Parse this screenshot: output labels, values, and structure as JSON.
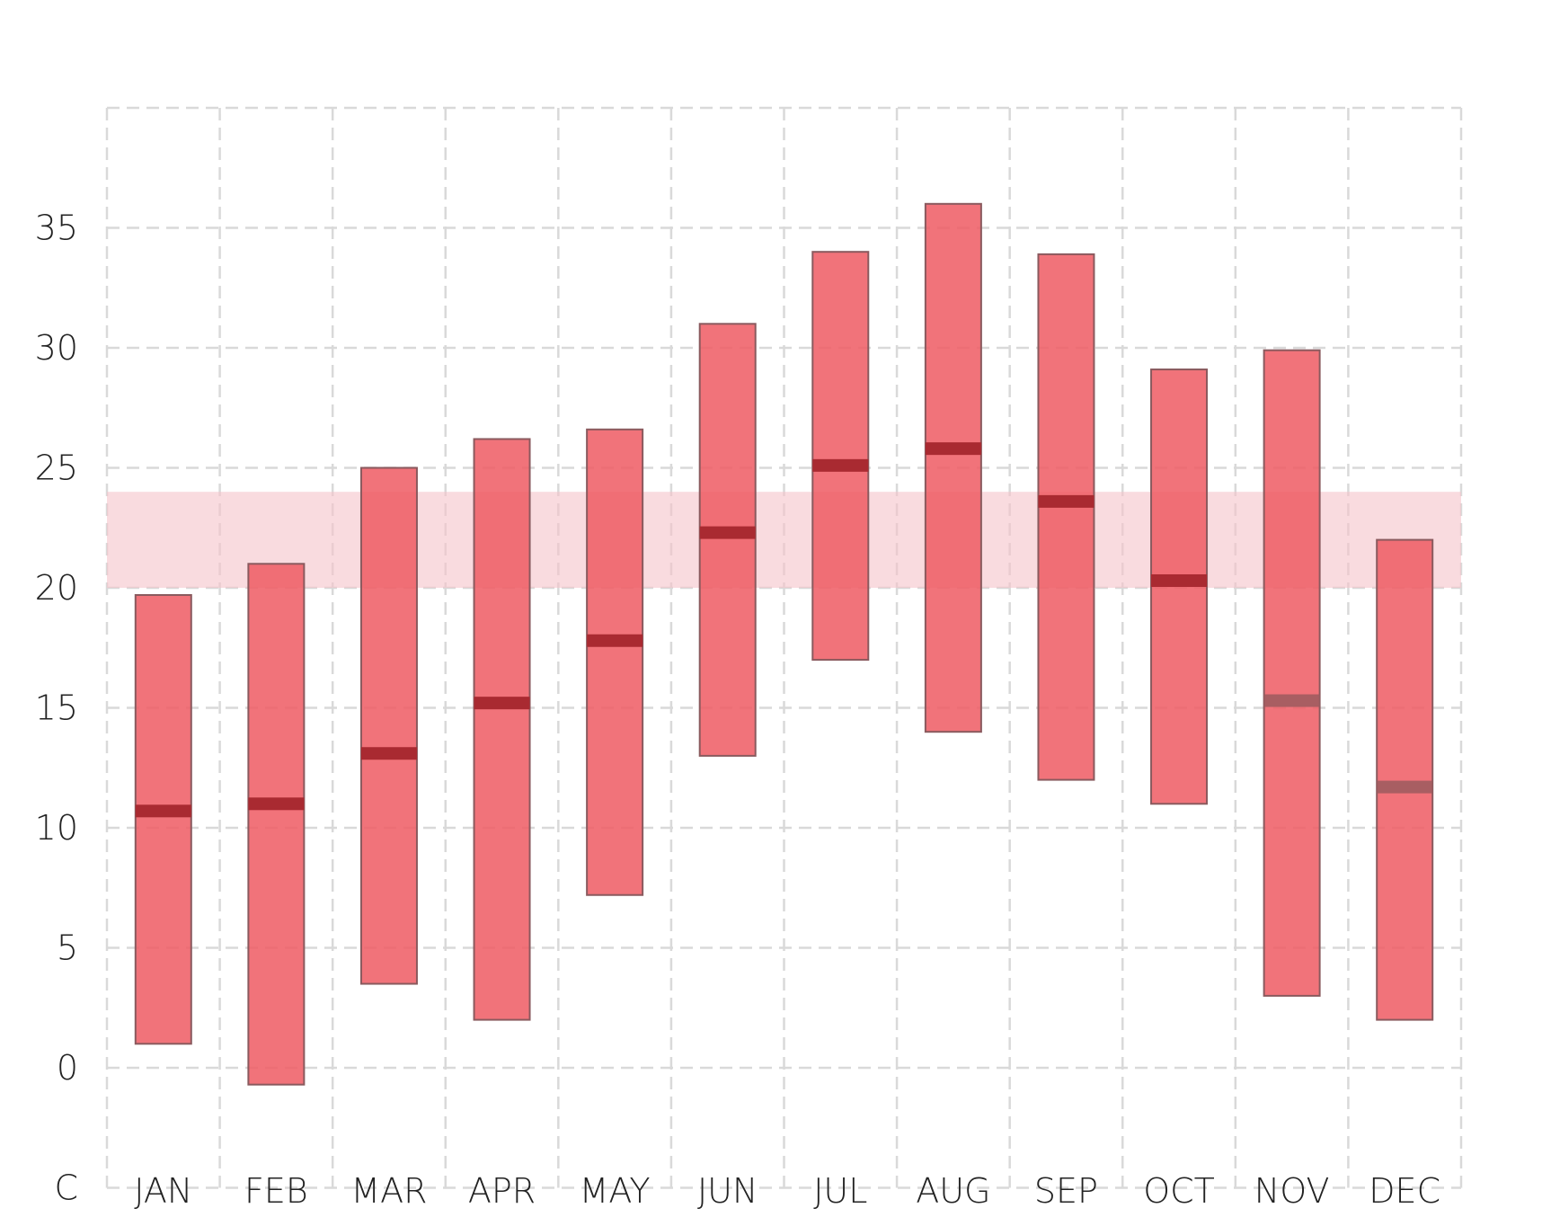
{
  "chart_data": {
    "type": "range-bar",
    "categories": [
      "JAN",
      "FEB",
      "MAR",
      "APR",
      "MAY",
      "JUN",
      "JUL",
      "AUG",
      "SEP",
      "OCT",
      "NOV",
      "DEC"
    ],
    "series": [
      {
        "min": [
          1.0,
          -0.7,
          3.5,
          2.0,
          7.2,
          13.0,
          17.0,
          14.0,
          12.0,
          11.0,
          3.0,
          2.0
        ],
        "max": [
          19.7,
          21.0,
          25.0,
          26.2,
          26.6,
          31.0,
          34.0,
          36.0,
          33.9,
          29.1,
          29.9,
          22.0
        ],
        "median": [
          10.7,
          11.0,
          13.1,
          15.2,
          17.8,
          22.3,
          25.1,
          25.8,
          23.6,
          20.3,
          15.3,
          11.7
        ],
        "median_faded": [
          false,
          false,
          false,
          false,
          false,
          false,
          false,
          false,
          false,
          false,
          true,
          true
        ]
      }
    ],
    "highlight_band": [
      20,
      24
    ],
    "ylim": [
      -5,
      40
    ],
    "yticks": [
      {
        "value": 35,
        "label": "35"
      },
      {
        "value": 30,
        "label": "30"
      },
      {
        "value": 25,
        "label": "25"
      },
      {
        "value": 20,
        "label": "20"
      },
      {
        "value": 15,
        "label": "15"
      },
      {
        "value": 10,
        "label": "10"
      },
      {
        "value": 5,
        "label": "5"
      },
      {
        "value": 0,
        "label": "0"
      },
      {
        "value": -5,
        "label": "C"
      }
    ],
    "title": "",
    "xlabel": "",
    "ylabel": "",
    "grid": true,
    "colors": {
      "bar": "#ef5a63",
      "median": "#a92a31",
      "band": "#f5c3ca"
    }
  }
}
